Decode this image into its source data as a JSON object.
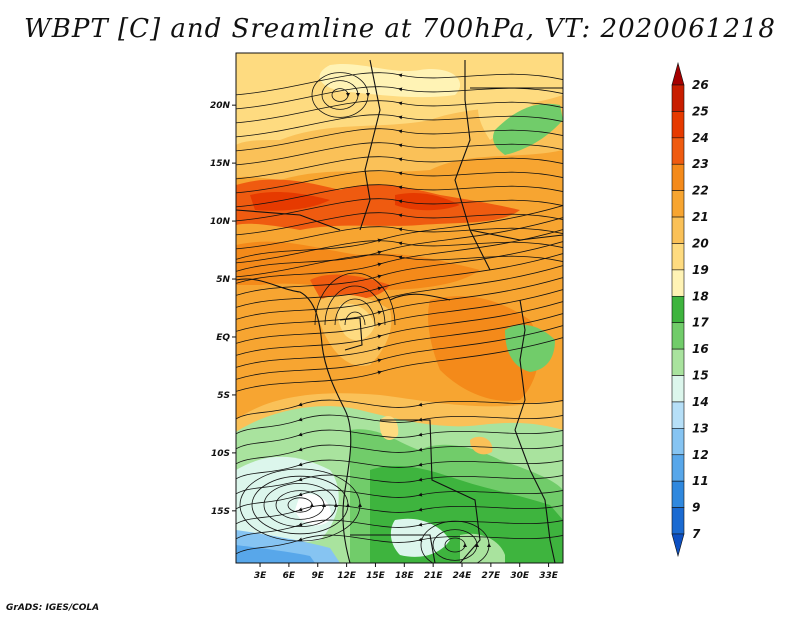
{
  "title": "WBPT [C] and Sreamline at 700hPa, VT: 2020061218",
  "credit": "GrADS: IGES/COLA",
  "map": {
    "lat_labels": [
      "20N",
      "15N",
      "10N",
      "5N",
      "EQ",
      "5S",
      "10S",
      "15S"
    ],
    "lat_values": [
      20,
      15,
      10,
      5,
      0,
      -5,
      -10,
      -15
    ],
    "lon_labels": [
      "3E",
      "6E",
      "9E",
      "12E",
      "15E",
      "18E",
      "21E",
      "24E",
      "27E",
      "30E",
      "33E"
    ],
    "lon_values": [
      3,
      6,
      9,
      12,
      15,
      18,
      21,
      24,
      27,
      30,
      33
    ],
    "lon_range": [
      0.5,
      34.5
    ],
    "lat_range": [
      -19.5,
      24.5
    ]
  },
  "colorbar": {
    "labels": [
      "26",
      "25",
      "24",
      "23",
      "22",
      "21",
      "20",
      "19",
      "18",
      "17",
      "16",
      "15",
      "14",
      "13",
      "12",
      "11",
      "9",
      "7"
    ],
    "colors": [
      "#a50000",
      "#c81d00",
      "#e63a00",
      "#ef5b10",
      "#f48a1a",
      "#f7a531",
      "#fac158",
      "#fedb80",
      "#fff3b5",
      "#3eb43e",
      "#71cc6a",
      "#a9e39e",
      "#dcf6ec",
      "#b6dff7",
      "#86c4f2",
      "#58a7ea",
      "#2f88de",
      "#1a6ad1",
      "#0d50c2"
    ]
  }
}
